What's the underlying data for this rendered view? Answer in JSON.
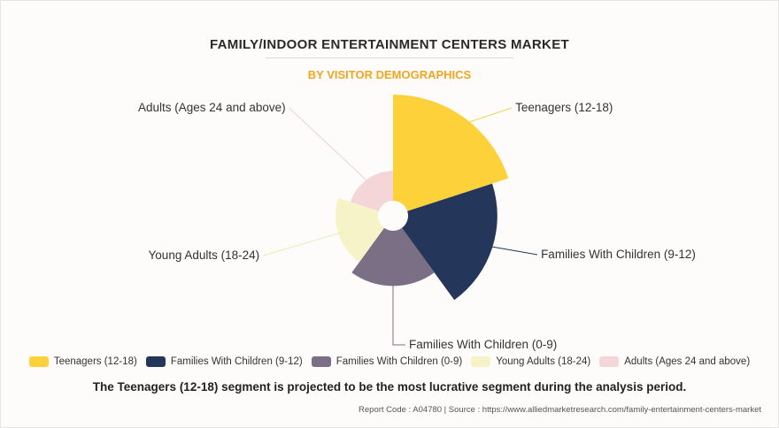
{
  "title": "FAMILY/INDOOR ENTERTAINMENT CENTERS MARKET",
  "subtitle": "BY VISITOR DEMOGRAPHICS",
  "chart_data": {
    "type": "polar-area",
    "categories": [
      "Teenagers (12-18)",
      "Families With Children (9-12)",
      "Families With Children (0-9)",
      "Young Adults (18-24)",
      "Adults (Ages 24 and above)"
    ],
    "values": [
      100,
      84,
      52,
      40,
      28
    ],
    "colors": [
      "#fdd13a",
      "#24365a",
      "#7b6f85",
      "#f6f3c8",
      "#f4d6d8"
    ],
    "label_positions": [
      "right",
      "right",
      "bottom",
      "left",
      "left"
    ]
  },
  "legend": [
    "Teenagers (12-18)",
    "Families With Children (9-12)",
    "Families With Children (0-9)",
    "Young Adults (18-24)",
    "Adults (Ages 24 and above)"
  ],
  "footnote": "The Teenagers (12-18) segment is projected to be the most lucrative segment during the analysis period.",
  "source": "Report Code : A04780  |  Source : https://www.alliedmarketresearch.com/family-entertainment-centers-market"
}
